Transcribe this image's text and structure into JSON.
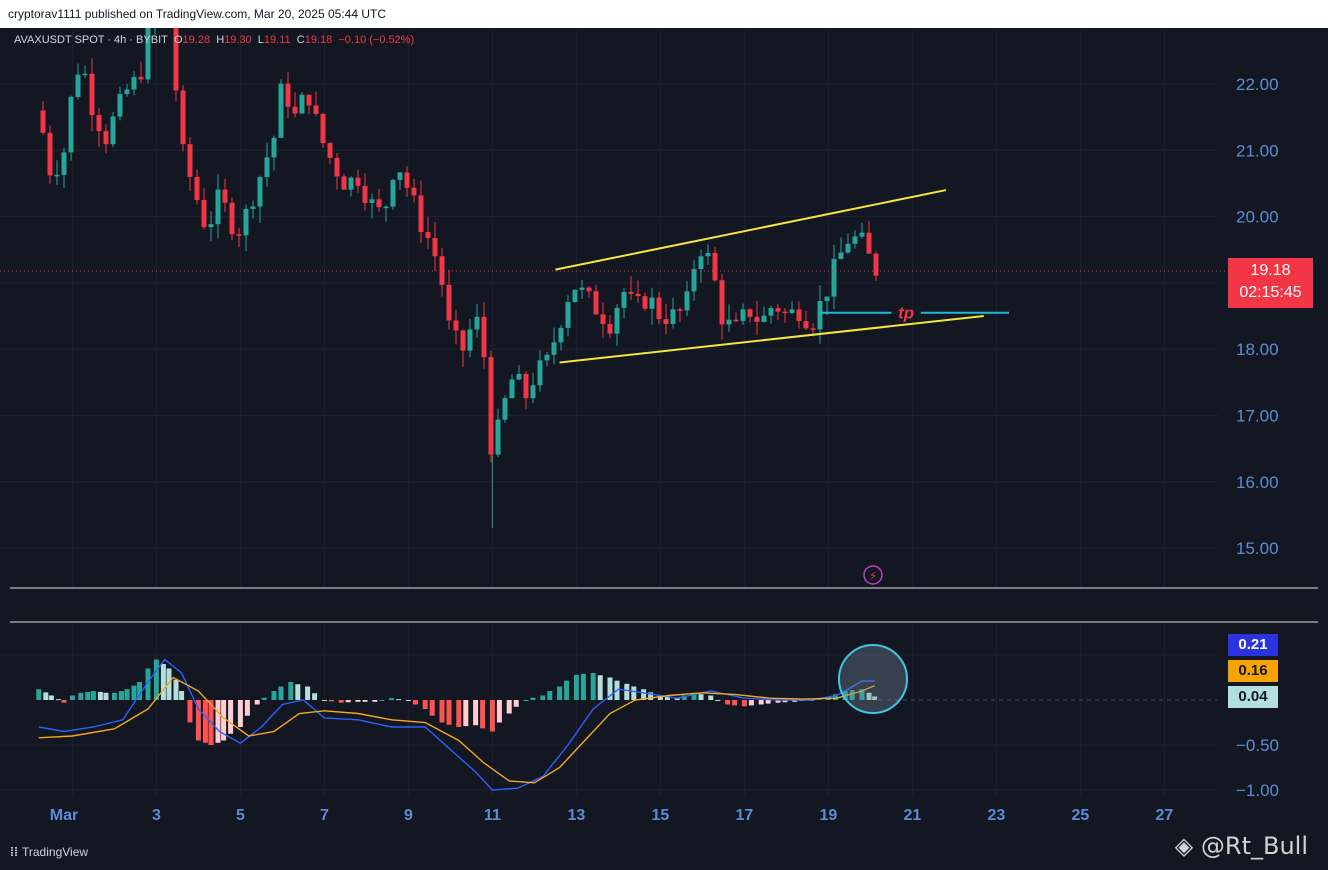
{
  "header": {
    "publisher": "cryptorav1111 published on TradingView.com, Mar 20, 2025 05:44 UTC"
  },
  "legend": {
    "symbol": "AVAXUSDT SPOT · 4h · BYBIT",
    "open_label": "O",
    "open": "19.28",
    "high_label": "H",
    "high": "19.30",
    "low_label": "L",
    "low": "19.11",
    "close_label": "C",
    "close": "19.18",
    "change": "−0.10 (−0.52%)"
  },
  "price_tag": {
    "price": "19.18",
    "countdown": "02:15:45"
  },
  "indicator_tags": [
    {
      "value": "0.21",
      "color": "#2b33e0"
    },
    {
      "value": "0.16",
      "color": "#f5a300"
    },
    {
      "value": "0.04",
      "color": "#b2dfdb"
    }
  ],
  "annotation": {
    "tp_label": "tp"
  },
  "footer": {
    "brand": "TradingView",
    "watermark": "@Rt_Bull"
  },
  "colors": {
    "up": "#26a69a",
    "down": "#f23645",
    "channel": "#f5e342",
    "tp_line": "#20b8d8",
    "macd": "#2962ff",
    "signal": "#f5a623",
    "bg": "#131722"
  },
  "chart_data": [
    {
      "type": "candlestick",
      "title": "",
      "y_ticks": [
        "22.00",
        "21.00",
        "20.00",
        "18.00",
        "17.00",
        "16.00",
        "15.00"
      ],
      "x_ticks": [
        "Mar",
        "3",
        "5",
        "7",
        "9",
        "11",
        "13",
        "15",
        "17",
        "19",
        "21",
        "23",
        "25",
        "27"
      ],
      "ylim": [
        14.45,
        23.0
      ],
      "x_range_days": [
        0.15,
        28.5
      ],
      "current_price": 19.18,
      "close_path": [
        [
          0.2,
          21.6
        ],
        [
          0.5,
          20.6
        ],
        [
          0.8,
          21.0
        ],
        [
          1.0,
          21.9
        ],
        [
          1.2,
          22.4
        ],
        [
          1.5,
          21.6
        ],
        [
          1.8,
          21.2
        ],
        [
          2.0,
          21.5
        ],
        [
          2.3,
          21.9
        ],
        [
          2.6,
          22.1
        ],
        [
          2.8,
          22.8
        ],
        [
          3.0,
          23.0
        ],
        [
          3.3,
          23.1
        ],
        [
          3.6,
          21.0
        ],
        [
          4.0,
          20.2
        ],
        [
          4.2,
          19.8
        ],
        [
          4.5,
          20.3
        ],
        [
          4.8,
          19.9
        ],
        [
          5.0,
          19.8
        ],
        [
          5.4,
          20.5
        ],
        [
          5.8,
          21.2
        ],
        [
          6.0,
          22.0
        ],
        [
          6.3,
          21.5
        ],
        [
          6.6,
          21.9
        ],
        [
          6.9,
          21.2
        ],
        [
          7.2,
          20.8
        ],
        [
          7.5,
          20.5
        ],
        [
          7.8,
          20.6
        ],
        [
          8.1,
          20.2
        ],
        [
          8.4,
          20.0
        ],
        [
          8.7,
          20.9
        ],
        [
          9.0,
          20.4
        ],
        [
          9.3,
          19.9
        ],
        [
          9.6,
          19.5
        ],
        [
          9.8,
          19.0
        ],
        [
          10.0,
          18.2
        ],
        [
          10.3,
          18.0
        ],
        [
          10.6,
          18.5
        ],
        [
          10.8,
          17.9
        ],
        [
          11.0,
          16.3
        ],
        [
          11.2,
          17.0
        ],
        [
          11.5,
          17.6
        ],
        [
          11.8,
          17.3
        ],
        [
          12.0,
          17.6
        ],
        [
          12.3,
          17.8
        ],
        [
          12.6,
          18.4
        ],
        [
          12.9,
          19.0
        ],
        [
          13.2,
          18.8
        ],
        [
          13.5,
          18.6
        ],
        [
          13.8,
          18.4
        ],
        [
          14.1,
          18.9
        ],
        [
          14.4,
          18.6
        ],
        [
          14.7,
          18.8
        ],
        [
          15.0,
          18.5
        ],
        [
          15.3,
          18.5
        ],
        [
          15.6,
          18.6
        ],
        [
          15.9,
          19.6
        ],
        [
          16.2,
          19.3
        ],
        [
          16.5,
          18.4
        ],
        [
          16.8,
          18.3
        ],
        [
          17.1,
          18.6
        ],
        [
          17.4,
          18.4
        ],
        [
          17.7,
          18.7
        ],
        [
          18.0,
          18.5
        ],
        [
          18.3,
          18.6
        ],
        [
          18.6,
          18.4
        ],
        [
          18.9,
          18.8
        ],
        [
          19.2,
          19.3
        ],
        [
          19.5,
          19.7
        ],
        [
          19.8,
          19.6
        ],
        [
          20.1,
          19.2
        ]
      ],
      "annotations": [
        {
          "type": "channel-upper",
          "from": [
            12.5,
            19.2
          ],
          "to": [
            21.8,
            20.4
          ]
        },
        {
          "type": "channel-lower",
          "from": [
            12.6,
            17.8
          ],
          "to": [
            22.7,
            18.5
          ]
        },
        {
          "type": "horizontal-level",
          "label": "tp",
          "from": [
            18.8,
            18.55
          ],
          "to": [
            23.3,
            18.55
          ]
        }
      ]
    },
    {
      "type": "macd",
      "y_ticks": [
        "−0.50",
        "−1.00"
      ],
      "ylim": [
        -1.05,
        0.6
      ],
      "histogram": [
        [
          0.2,
          0.12
        ],
        [
          0.5,
          0.05
        ],
        [
          0.8,
          -0.03
        ],
        [
          1.0,
          0.05
        ],
        [
          1.2,
          0.08
        ],
        [
          1.5,
          0.1
        ],
        [
          1.8,
          0.08
        ],
        [
          2.0,
          0.08
        ],
        [
          2.3,
          0.12
        ],
        [
          2.6,
          0.2
        ],
        [
          2.8,
          0.35
        ],
        [
          3.0,
          0.45
        ],
        [
          3.3,
          0.35
        ],
        [
          3.6,
          0.1
        ],
        [
          3.8,
          -0.25
        ],
        [
          4.0,
          -0.45
        ],
        [
          4.3,
          -0.5
        ],
        [
          4.6,
          -0.45
        ],
        [
          5.0,
          -0.3
        ],
        [
          5.4,
          -0.05
        ],
        [
          5.8,
          0.1
        ],
        [
          6.2,
          0.2
        ],
        [
          6.6,
          0.15
        ],
        [
          7.0,
          0.0
        ],
        [
          7.4,
          -0.03
        ],
        [
          7.8,
          -0.02
        ],
        [
          8.2,
          -0.02
        ],
        [
          8.6,
          0.02
        ],
        [
          9.0,
          0.0
        ],
        [
          9.4,
          -0.1
        ],
        [
          9.8,
          -0.25
        ],
        [
          10.2,
          -0.3
        ],
        [
          10.6,
          -0.28
        ],
        [
          11.0,
          -0.35
        ],
        [
          11.4,
          -0.15
        ],
        [
          11.8,
          0.0
        ],
        [
          12.2,
          0.05
        ],
        [
          12.6,
          0.15
        ],
        [
          13.0,
          0.28
        ],
        [
          13.4,
          0.3
        ],
        [
          13.8,
          0.25
        ],
        [
          14.2,
          0.18
        ],
        [
          14.6,
          0.12
        ],
        [
          15.0,
          0.05
        ],
        [
          15.4,
          0.02
        ],
        [
          15.8,
          0.08
        ],
        [
          16.2,
          0.05
        ],
        [
          16.6,
          -0.05
        ],
        [
          17.0,
          -0.07
        ],
        [
          17.4,
          -0.05
        ],
        [
          17.8,
          -0.03
        ],
        [
          18.2,
          -0.02
        ],
        [
          18.6,
          0.0
        ],
        [
          19.0,
          0.03
        ],
        [
          19.4,
          0.1
        ],
        [
          19.8,
          0.12
        ],
        [
          20.1,
          0.04
        ]
      ],
      "macd": [
        [
          0.2,
          -0.3
        ],
        [
          0.8,
          -0.35
        ],
        [
          1.5,
          -0.3
        ],
        [
          2.2,
          -0.22
        ],
        [
          2.8,
          0.2
        ],
        [
          3.2,
          0.45
        ],
        [
          3.6,
          0.3
        ],
        [
          4.0,
          -0.1
        ],
        [
          4.5,
          -0.35
        ],
        [
          5.0,
          -0.48
        ],
        [
          5.5,
          -0.3
        ],
        [
          6.0,
          -0.05
        ],
        [
          6.5,
          0.0
        ],
        [
          7.0,
          -0.2
        ],
        [
          7.8,
          -0.22
        ],
        [
          8.6,
          -0.3
        ],
        [
          9.4,
          -0.3
        ],
        [
          10.0,
          -0.55
        ],
        [
          10.6,
          -0.8
        ],
        [
          11.0,
          -1.0
        ],
        [
          11.6,
          -0.98
        ],
        [
          12.2,
          -0.85
        ],
        [
          12.8,
          -0.5
        ],
        [
          13.4,
          -0.1
        ],
        [
          14.0,
          0.12
        ],
        [
          14.6,
          0.08
        ],
        [
          15.4,
          0.02
        ],
        [
          16.2,
          0.1
        ],
        [
          17.0,
          0.02
        ],
        [
          17.8,
          0.0
        ],
        [
          18.6,
          0.0
        ],
        [
          19.2,
          0.05
        ],
        [
          19.8,
          0.21
        ],
        [
          20.1,
          0.21
        ]
      ],
      "signal": [
        [
          0.2,
          -0.42
        ],
        [
          1.0,
          -0.4
        ],
        [
          2.0,
          -0.32
        ],
        [
          2.8,
          -0.1
        ],
        [
          3.4,
          0.25
        ],
        [
          4.0,
          0.1
        ],
        [
          4.6,
          -0.2
        ],
        [
          5.2,
          -0.4
        ],
        [
          5.8,
          -0.35
        ],
        [
          6.4,
          -0.15
        ],
        [
          7.0,
          -0.12
        ],
        [
          7.8,
          -0.15
        ],
        [
          8.6,
          -0.22
        ],
        [
          9.4,
          -0.25
        ],
        [
          10.2,
          -0.45
        ],
        [
          10.8,
          -0.7
        ],
        [
          11.4,
          -0.9
        ],
        [
          12.0,
          -0.92
        ],
        [
          12.6,
          -0.75
        ],
        [
          13.2,
          -0.45
        ],
        [
          13.8,
          -0.15
        ],
        [
          14.4,
          0.0
        ],
        [
          15.2,
          0.05
        ],
        [
          16.0,
          0.08
        ],
        [
          16.8,
          0.06
        ],
        [
          17.6,
          0.02
        ],
        [
          18.4,
          0.01
        ],
        [
          19.2,
          0.02
        ],
        [
          19.8,
          0.1
        ],
        [
          20.1,
          0.16
        ]
      ]
    }
  ]
}
